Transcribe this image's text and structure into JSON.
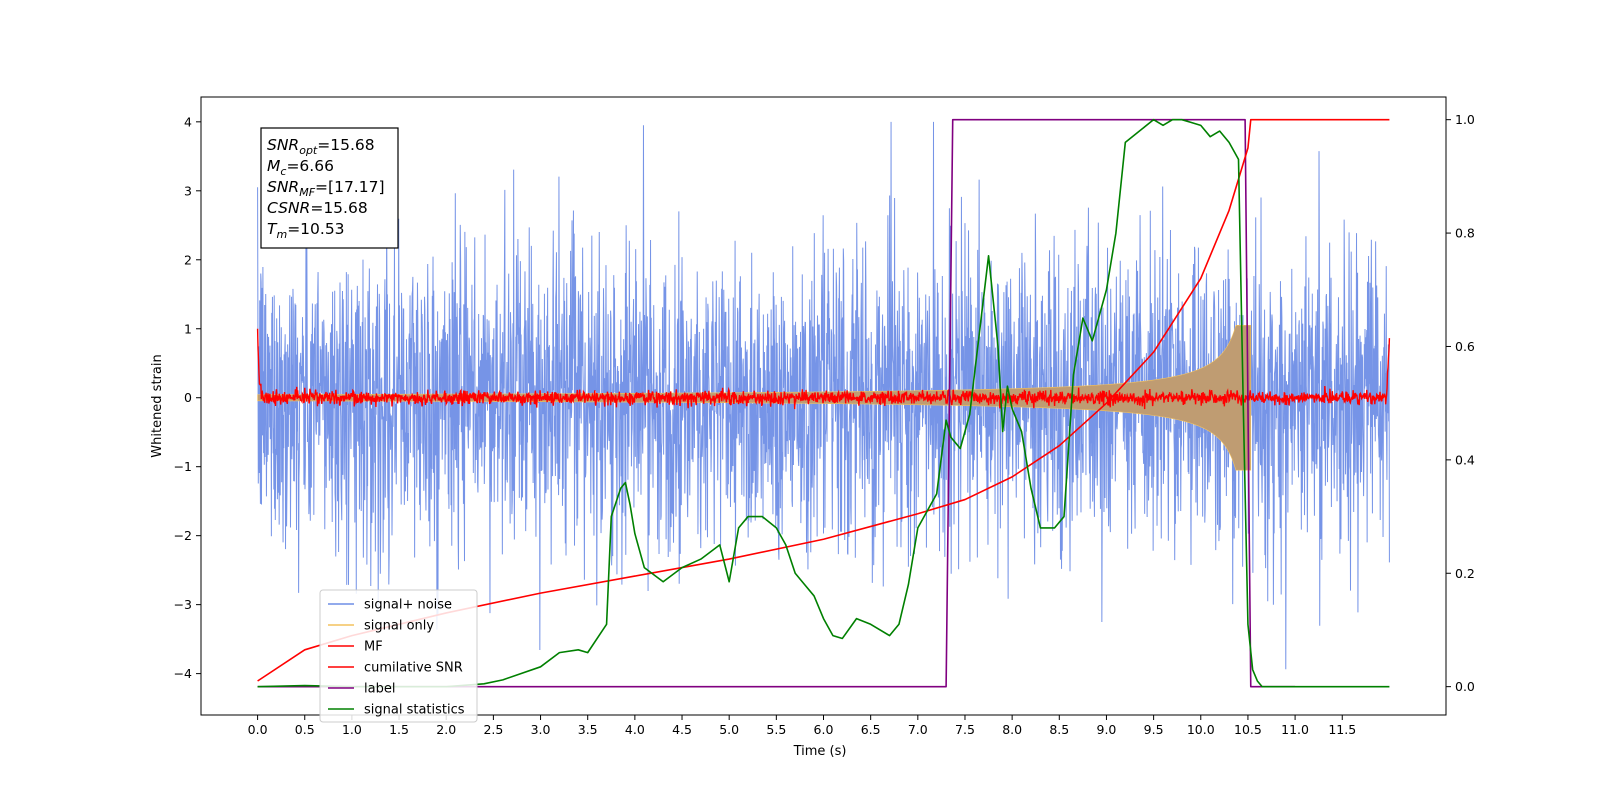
{
  "chart_data": {
    "type": "line",
    "xlabel": "Time (s)",
    "ylabel": "Whitened strain",
    "xlim": [
      -0.6,
      12.6
    ],
    "ylim": [
      -4.6,
      4.36
    ],
    "y2lim": [
      -0.05,
      1.04
    ],
    "x_ticks": [
      "0.0",
      "0.5",
      "1.0",
      "1.5",
      "2.0",
      "2.5",
      "3.0",
      "3.5",
      "4.0",
      "4.5",
      "5.0",
      "5.5",
      "6.0",
      "6.5",
      "7.0",
      "7.5",
      "8.0",
      "8.5",
      "9.0",
      "9.5",
      "10.0",
      "10.5",
      "11.0",
      "11.5"
    ],
    "y_ticks": [
      "4",
      "3",
      "2",
      "1",
      "0",
      "−1",
      "−2",
      "−3",
      "−4"
    ],
    "y2_ticks": [
      "1.0",
      "0.8",
      "0.6",
      "0.4",
      "0.2",
      "0.0"
    ],
    "grid": false,
    "legend_position": "lower-left",
    "colors": {
      "signal_noise": "#6f8ee6",
      "signal_only": "#f4c25e",
      "signal_fill": "#bf9c72",
      "mf": "#ff0000",
      "cumulative_snr": "#ff0000",
      "label": "#800080",
      "signal_statistics": "#008000"
    },
    "series": [
      {
        "name": "signal+ noise",
        "axis": "left",
        "kind": "noise",
        "x_range": [
          0.0,
          12.0
        ],
        "amplitude_sd": 1.0
      },
      {
        "name": "signal only",
        "axis": "left",
        "kind": "chirp",
        "x_range": [
          0.0,
          10.53
        ],
        "peak_amplitude": 1.05
      },
      {
        "name": "MF",
        "axis": "left",
        "kind": "noise",
        "x_range": [
          0.0,
          12.0
        ],
        "amplitude_sd": 0.05,
        "start_value": 1.0,
        "end_value": 0.85
      },
      {
        "name": "cumilative SNR",
        "axis": "right",
        "x": [
          0.0,
          0.5,
          1.0,
          2.0,
          3.0,
          4.0,
          5.0,
          6.0,
          7.0,
          7.5,
          8.0,
          8.5,
          9.0,
          9.5,
          10.0,
          10.3,
          10.5,
          10.53,
          12.0
        ],
        "y": [
          0.01,
          0.065,
          0.09,
          0.13,
          0.165,
          0.195,
          0.225,
          0.26,
          0.305,
          0.33,
          0.37,
          0.425,
          0.5,
          0.59,
          0.72,
          0.84,
          0.95,
          1.0,
          1.0
        ]
      },
      {
        "name": "label",
        "axis": "right",
        "x": [
          0.0,
          7.3,
          7.37,
          10.47,
          10.53,
          11.0
        ],
        "y": [
          0.0,
          0.0,
          1.0,
          1.0,
          0.0,
          0.0
        ]
      },
      {
        "name": "signal statistics",
        "axis": "right",
        "x": [
          0.0,
          0.5,
          1.0,
          2.0,
          2.4,
          2.6,
          3.0,
          3.2,
          3.4,
          3.5,
          3.7,
          3.75,
          3.85,
          3.9,
          3.95,
          4.0,
          4.1,
          4.3,
          4.5,
          4.7,
          4.9,
          5.0,
          5.1,
          5.2,
          5.35,
          5.5,
          5.6,
          5.7,
          5.8,
          5.9,
          6.0,
          6.1,
          6.2,
          6.35,
          6.5,
          6.7,
          6.8,
          6.9,
          7.0,
          7.2,
          7.3,
          7.35,
          7.45,
          7.55,
          7.65,
          7.75,
          7.85,
          7.9,
          7.95,
          8.0,
          8.1,
          8.2,
          8.3,
          8.45,
          8.55,
          8.65,
          8.75,
          8.85,
          9.0,
          9.1,
          9.2,
          9.35,
          9.5,
          9.6,
          9.7,
          9.8,
          9.9,
          10.0,
          10.1,
          10.2,
          10.3,
          10.4,
          10.45,
          10.5,
          10.55,
          10.6,
          10.65,
          10.7,
          11.0,
          12.0
        ],
        "y": [
          0.0,
          0.002,
          0.0,
          0.0,
          0.005,
          0.012,
          0.035,
          0.06,
          0.065,
          0.06,
          0.11,
          0.3,
          0.35,
          0.36,
          0.32,
          0.27,
          0.21,
          0.185,
          0.21,
          0.225,
          0.25,
          0.185,
          0.28,
          0.3,
          0.3,
          0.28,
          0.25,
          0.2,
          0.18,
          0.16,
          0.12,
          0.09,
          0.085,
          0.12,
          0.11,
          0.09,
          0.11,
          0.18,
          0.28,
          0.34,
          0.47,
          0.44,
          0.42,
          0.48,
          0.62,
          0.76,
          0.6,
          0.45,
          0.53,
          0.49,
          0.45,
          0.35,
          0.28,
          0.28,
          0.3,
          0.55,
          0.65,
          0.61,
          0.7,
          0.8,
          0.96,
          0.98,
          1.0,
          0.99,
          1.0,
          1.0,
          0.995,
          0.99,
          0.97,
          0.98,
          0.96,
          0.93,
          0.5,
          0.11,
          0.03,
          0.01,
          0.0,
          0.0,
          0.0,
          0.0
        ]
      }
    ],
    "annotation": {
      "lines": [
        {
          "main": "SNR",
          "sub": "opt",
          "value": "=15.68"
        },
        {
          "main": "M",
          "sub": "c",
          "value": "=6.66"
        },
        {
          "main": "SNR",
          "sub": "MF",
          "value": "=[17.17]"
        },
        {
          "main": "CSNR",
          "sub": "",
          "value": "=15.68"
        },
        {
          "main": "T",
          "sub": "m",
          "value": "=10.53"
        }
      ]
    }
  }
}
